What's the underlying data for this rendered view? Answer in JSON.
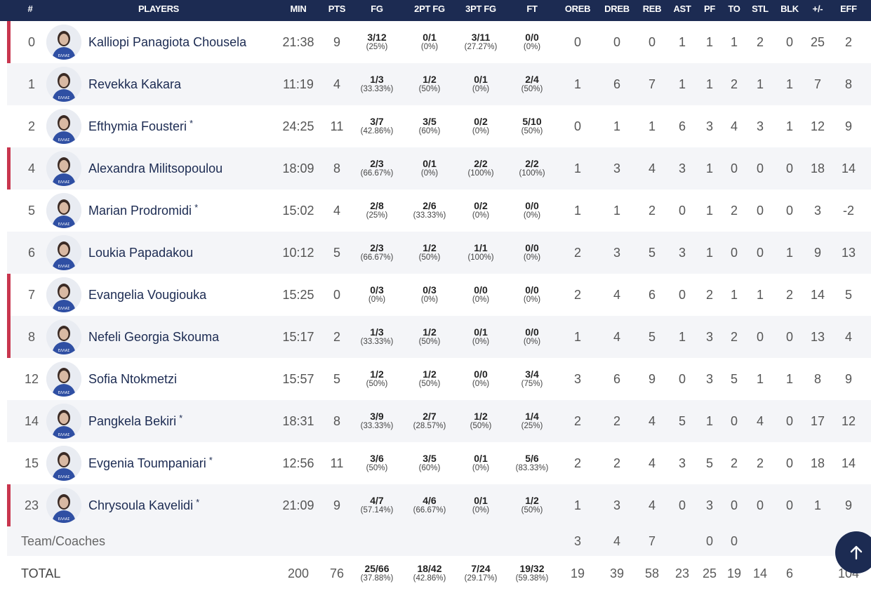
{
  "headers": {
    "num": "#",
    "players": "PLAYERS",
    "min": "MIN",
    "pts": "PTS",
    "fg": "FG",
    "fg2": "2PT FG",
    "fg3": "3PT FG",
    "ft": "FT",
    "oreb": "OREB",
    "dreb": "DREB",
    "reb": "REB",
    "ast": "AST",
    "pf": "PF",
    "to": "TO",
    "stl": "STL",
    "blk": "BLK",
    "pm": "+/-",
    "eff": "EFF"
  },
  "players": [
    {
      "num": "0",
      "name": "Kalliopi Panagiota Chousela",
      "star": "",
      "marked": true,
      "min": "21:38",
      "pts": "9",
      "fg": "3/12",
      "fg_p": "(25%)",
      "fg2": "0/1",
      "fg2_p": "(0%)",
      "fg3": "3/11",
      "fg3_p": "(27.27%)",
      "ft": "0/0",
      "ft_p": "(0%)",
      "oreb": "0",
      "dreb": "0",
      "reb": "0",
      "ast": "1",
      "pf": "1",
      "to": "1",
      "stl": "2",
      "blk": "0",
      "pm": "25",
      "eff": "2"
    },
    {
      "num": "1",
      "name": "Revekka Kakara",
      "star": "",
      "marked": false,
      "min": "11:19",
      "pts": "4",
      "fg": "1/3",
      "fg_p": "(33.33%)",
      "fg2": "1/2",
      "fg2_p": "(50%)",
      "fg3": "0/1",
      "fg3_p": "(0%)",
      "ft": "2/4",
      "ft_p": "(50%)",
      "oreb": "1",
      "dreb": "6",
      "reb": "7",
      "ast": "1",
      "pf": "1",
      "to": "2",
      "stl": "1",
      "blk": "1",
      "pm": "7",
      "eff": "8"
    },
    {
      "num": "2",
      "name": "Efthymia Fousteri",
      "star": "*",
      "marked": false,
      "min": "24:25",
      "pts": "11",
      "fg": "3/7",
      "fg_p": "(42.86%)",
      "fg2": "3/5",
      "fg2_p": "(60%)",
      "fg3": "0/2",
      "fg3_p": "(0%)",
      "ft": "5/10",
      "ft_p": "(50%)",
      "oreb": "0",
      "dreb": "1",
      "reb": "1",
      "ast": "6",
      "pf": "3",
      "to": "4",
      "stl": "3",
      "blk": "1",
      "pm": "12",
      "eff": "9"
    },
    {
      "num": "4",
      "name": "Alexandra Militsopoulou",
      "star": "",
      "marked": true,
      "min": "18:09",
      "pts": "8",
      "fg": "2/3",
      "fg_p": "(66.67%)",
      "fg2": "0/1",
      "fg2_p": "(0%)",
      "fg3": "2/2",
      "fg3_p": "(100%)",
      "ft": "2/2",
      "ft_p": "(100%)",
      "oreb": "1",
      "dreb": "3",
      "reb": "4",
      "ast": "3",
      "pf": "1",
      "to": "0",
      "stl": "0",
      "blk": "0",
      "pm": "18",
      "eff": "14"
    },
    {
      "num": "5",
      "name": "Marian Prodromidi",
      "star": "*",
      "marked": false,
      "min": "15:02",
      "pts": "4",
      "fg": "2/8",
      "fg_p": "(25%)",
      "fg2": "2/6",
      "fg2_p": "(33.33%)",
      "fg3": "0/2",
      "fg3_p": "(0%)",
      "ft": "0/0",
      "ft_p": "(0%)",
      "oreb": "1",
      "dreb": "1",
      "reb": "2",
      "ast": "0",
      "pf": "1",
      "to": "2",
      "stl": "0",
      "blk": "0",
      "pm": "3",
      "eff": "-2"
    },
    {
      "num": "6",
      "name": "Loukia Papadakou",
      "star": "",
      "marked": false,
      "min": "10:12",
      "pts": "5",
      "fg": "2/3",
      "fg_p": "(66.67%)",
      "fg2": "1/2",
      "fg2_p": "(50%)",
      "fg3": "1/1",
      "fg3_p": "(100%)",
      "ft": "0/0",
      "ft_p": "(0%)",
      "oreb": "2",
      "dreb": "3",
      "reb": "5",
      "ast": "3",
      "pf": "1",
      "to": "0",
      "stl": "0",
      "blk": "1",
      "pm": "9",
      "eff": "13"
    },
    {
      "num": "7",
      "name": "Evangelia Vougiouka",
      "star": "",
      "marked": true,
      "min": "15:25",
      "pts": "0",
      "fg": "0/3",
      "fg_p": "(0%)",
      "fg2": "0/3",
      "fg2_p": "(0%)",
      "fg3": "0/0",
      "fg3_p": "(0%)",
      "ft": "0/0",
      "ft_p": "(0%)",
      "oreb": "2",
      "dreb": "4",
      "reb": "6",
      "ast": "0",
      "pf": "2",
      "to": "1",
      "stl": "1",
      "blk": "2",
      "pm": "14",
      "eff": "5"
    },
    {
      "num": "8",
      "name": "Nefeli Georgia Skouma",
      "star": "",
      "marked": true,
      "min": "15:17",
      "pts": "2",
      "fg": "1/3",
      "fg_p": "(33.33%)",
      "fg2": "1/2",
      "fg2_p": "(50%)",
      "fg3": "0/1",
      "fg3_p": "(0%)",
      "ft": "0/0",
      "ft_p": "(0%)",
      "oreb": "1",
      "dreb": "4",
      "reb": "5",
      "ast": "1",
      "pf": "3",
      "to": "2",
      "stl": "0",
      "blk": "0",
      "pm": "13",
      "eff": "4"
    },
    {
      "num": "12",
      "name": "Sofia Ntokmetzi",
      "star": "",
      "marked": false,
      "min": "15:57",
      "pts": "5",
      "fg": "1/2",
      "fg_p": "(50%)",
      "fg2": "1/2",
      "fg2_p": "(50%)",
      "fg3": "0/0",
      "fg3_p": "(0%)",
      "ft": "3/4",
      "ft_p": "(75%)",
      "oreb": "3",
      "dreb": "6",
      "reb": "9",
      "ast": "0",
      "pf": "3",
      "to": "5",
      "stl": "1",
      "blk": "1",
      "pm": "8",
      "eff": "9"
    },
    {
      "num": "14",
      "name": "Pangkela Bekiri",
      "star": "*",
      "marked": false,
      "min": "18:31",
      "pts": "8",
      "fg": "3/9",
      "fg_p": "(33.33%)",
      "fg2": "2/7",
      "fg2_p": "(28.57%)",
      "fg3": "1/2",
      "fg3_p": "(50%)",
      "ft": "1/4",
      "ft_p": "(25%)",
      "oreb": "2",
      "dreb": "2",
      "reb": "4",
      "ast": "5",
      "pf": "1",
      "to": "0",
      "stl": "4",
      "blk": "0",
      "pm": "17",
      "eff": "12"
    },
    {
      "num": "15",
      "name": "Evgenia Toumpaniari",
      "star": "*",
      "marked": false,
      "min": "12:56",
      "pts": "11",
      "fg": "3/6",
      "fg_p": "(50%)",
      "fg2": "3/5",
      "fg2_p": "(60%)",
      "fg3": "0/1",
      "fg3_p": "(0%)",
      "ft": "5/6",
      "ft_p": "(83.33%)",
      "oreb": "2",
      "dreb": "2",
      "reb": "4",
      "ast": "3",
      "pf": "5",
      "to": "2",
      "stl": "2",
      "blk": "0",
      "pm": "18",
      "eff": "14"
    },
    {
      "num": "23",
      "name": "Chrysoula Kavelidi",
      "star": "*",
      "marked": true,
      "min": "21:09",
      "pts": "9",
      "fg": "4/7",
      "fg_p": "(57.14%)",
      "fg2": "4/6",
      "fg2_p": "(66.67%)",
      "fg3": "0/1",
      "fg3_p": "(0%)",
      "ft": "1/2",
      "ft_p": "(50%)",
      "oreb": "1",
      "dreb": "3",
      "reb": "4",
      "ast": "0",
      "pf": "3",
      "to": "0",
      "stl": "0",
      "blk": "0",
      "pm": "1",
      "eff": "9"
    }
  ],
  "team": {
    "label": "Team/Coaches",
    "oreb": "3",
    "dreb": "4",
    "reb": "7",
    "pf": "0",
    "to": "0"
  },
  "total": {
    "label": "TOTAL",
    "min": "200",
    "pts": "76",
    "fg": "25/66",
    "fg_p": "(37.88%)",
    "fg2": "18/42",
    "fg2_p": "(42.86%)",
    "fg3": "7/24",
    "fg3_p": "(29.17%)",
    "ft": "19/32",
    "ft_p": "(59.38%)",
    "oreb": "19",
    "dreb": "39",
    "reb": "58",
    "ast": "23",
    "pf": "25",
    "to": "19",
    "stl": "14",
    "blk": "6",
    "eff": "104"
  },
  "colors": {
    "header": "#1c2b52",
    "accent": "#c8364e",
    "alt_row": "#f4f5f8",
    "player_name": "#1c2b52"
  },
  "icons": {
    "scroll_top": "arrow-up-icon",
    "avatar": "player-photo-icon"
  }
}
